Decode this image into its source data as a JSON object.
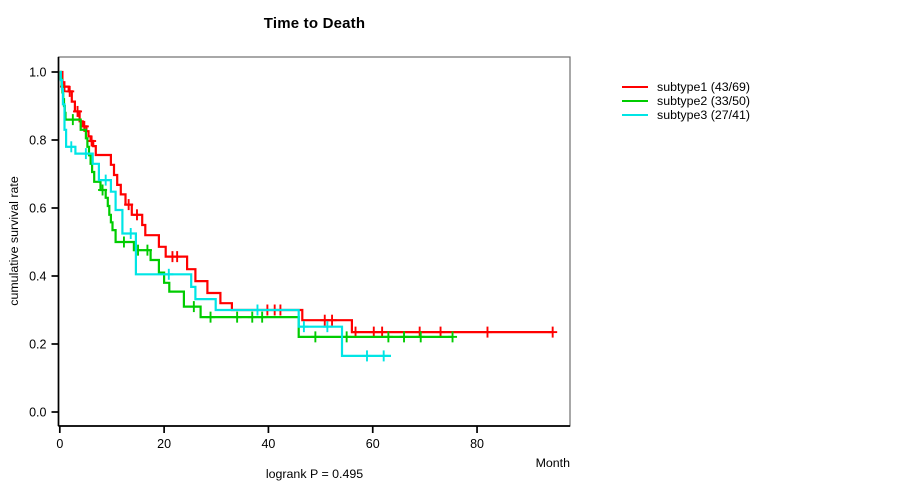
{
  "title": "Time to Death",
  "y_axis": {
    "label": "cumulative survival rate"
  },
  "x_axis": {
    "label": "Month"
  },
  "footer": "logrank P = 0.495",
  "legend": {
    "items": [
      {
        "label": "subtype1 (43/69)",
        "color": "#ff0000"
      },
      {
        "label": "subtype2 (33/50)",
        "color": "#00cc00"
      },
      {
        "label": "subtype3 (27/41)",
        "color": "#00e5e5"
      }
    ]
  },
  "chart_data": {
    "type": "line",
    "variant": "kaplan-meier-step",
    "title": "Time to Death",
    "xlabel": "Month",
    "ylabel": "cumulative survival rate",
    "annotation": "logrank P = 0.495",
    "xlim": [
      0,
      97.5
    ],
    "ylim": [
      0,
      1
    ],
    "x_ticks": [
      0,
      20,
      40,
      60,
      80
    ],
    "y_ticks": [
      0.0,
      0.2,
      0.4,
      0.6,
      0.8,
      1.0
    ],
    "grid": false,
    "legend_position": "right-outside",
    "series": [
      {
        "name": "subtype1",
        "events": 43,
        "n": 69,
        "color": "#ff0000",
        "end_time": 94.5,
        "steps": [
          [
            0,
            1.0
          ],
          [
            0.5,
            0.957
          ],
          [
            1.7,
            0.943
          ],
          [
            2.3,
            0.913
          ],
          [
            2.9,
            0.884
          ],
          [
            3.8,
            0.855
          ],
          [
            4.4,
            0.84
          ],
          [
            5.1,
            0.826
          ],
          [
            5.5,
            0.811
          ],
          [
            5.9,
            0.797
          ],
          [
            6.4,
            0.782
          ],
          [
            6.9,
            0.756
          ],
          [
            9.8,
            0.727
          ],
          [
            10.4,
            0.697
          ],
          [
            11.0,
            0.668
          ],
          [
            11.7,
            0.64
          ],
          [
            12.6,
            0.61
          ],
          [
            13.8,
            0.58
          ],
          [
            15.8,
            0.55
          ],
          [
            16.4,
            0.52
          ],
          [
            19.0,
            0.486
          ],
          [
            20.3,
            0.457
          ],
          [
            24.4,
            0.42
          ],
          [
            26.0,
            0.385
          ],
          [
            28.3,
            0.35
          ],
          [
            30.8,
            0.32
          ],
          [
            33.0,
            0.3
          ],
          [
            46.5,
            0.27
          ],
          [
            56.0,
            0.235
          ]
        ],
        "censors": [
          [
            0.9,
            0.957
          ],
          [
            1.9,
            0.943
          ],
          [
            3.4,
            0.884
          ],
          [
            4.7,
            0.84
          ],
          [
            6.1,
            0.797
          ],
          [
            13.2,
            0.61
          ],
          [
            14.8,
            0.58
          ],
          [
            21.6,
            0.457
          ],
          [
            22.5,
            0.457
          ],
          [
            39.8,
            0.3
          ],
          [
            41.2,
            0.3
          ],
          [
            42.3,
            0.3
          ],
          [
            50.8,
            0.27
          ],
          [
            52.2,
            0.27
          ],
          [
            56.7,
            0.235
          ],
          [
            60.2,
            0.235
          ],
          [
            61.8,
            0.235
          ],
          [
            69.0,
            0.235
          ],
          [
            73.0,
            0.235
          ],
          [
            82.0,
            0.235
          ],
          [
            94.5,
            0.235
          ]
        ]
      },
      {
        "name": "subtype2",
        "events": 33,
        "n": 50,
        "color": "#00cc00",
        "end_time": 75.3,
        "steps": [
          [
            0,
            1.0
          ],
          [
            0.2,
            0.98
          ],
          [
            0.35,
            0.96
          ],
          [
            0.5,
            0.94
          ],
          [
            0.65,
            0.92
          ],
          [
            0.8,
            0.9
          ],
          [
            0.95,
            0.88
          ],
          [
            1.1,
            0.86
          ],
          [
            4.0,
            0.83
          ],
          [
            5.0,
            0.805
          ],
          [
            5.3,
            0.78
          ],
          [
            5.6,
            0.755
          ],
          [
            5.9,
            0.73
          ],
          [
            6.2,
            0.706
          ],
          [
            6.6,
            0.677
          ],
          [
            7.8,
            0.653
          ],
          [
            8.8,
            0.63
          ],
          [
            9.2,
            0.606
          ],
          [
            9.5,
            0.58
          ],
          [
            9.8,
            0.558
          ],
          [
            10.1,
            0.535
          ],
          [
            10.7,
            0.5
          ],
          [
            14.2,
            0.476
          ],
          [
            17.4,
            0.447
          ],
          [
            19.0,
            0.41
          ],
          [
            20.0,
            0.38
          ],
          [
            21.0,
            0.354
          ],
          [
            23.8,
            0.31
          ],
          [
            27.0,
            0.279
          ],
          [
            45.8,
            0.221
          ]
        ],
        "censors": [
          [
            2.5,
            0.86
          ],
          [
            8.2,
            0.653
          ],
          [
            12.3,
            0.5
          ],
          [
            15.0,
            0.476
          ],
          [
            16.8,
            0.476
          ],
          [
            25.7,
            0.31
          ],
          [
            28.9,
            0.279
          ],
          [
            34.0,
            0.279
          ],
          [
            36.9,
            0.279
          ],
          [
            38.8,
            0.279
          ],
          [
            49.0,
            0.221
          ],
          [
            55.0,
            0.221
          ],
          [
            63.0,
            0.221
          ],
          [
            66.0,
            0.221
          ],
          [
            69.2,
            0.221
          ],
          [
            75.3,
            0.221
          ]
        ]
      },
      {
        "name": "subtype3",
        "events": 27,
        "n": 41,
        "color": "#00e5e5",
        "end_time": 63.5,
        "steps": [
          [
            0,
            1.0
          ],
          [
            0.2,
            0.976
          ],
          [
            0.4,
            0.95
          ],
          [
            0.6,
            0.905
          ],
          [
            0.9,
            0.83
          ],
          [
            1.2,
            0.78
          ],
          [
            3.0,
            0.76
          ],
          [
            6.3,
            0.73
          ],
          [
            7.5,
            0.682
          ],
          [
            9.8,
            0.648
          ],
          [
            10.7,
            0.594
          ],
          [
            12.0,
            0.525
          ],
          [
            14.6,
            0.405
          ],
          [
            25.2,
            0.368
          ],
          [
            26.0,
            0.332
          ],
          [
            29.9,
            0.3
          ],
          [
            45.8,
            0.251
          ],
          [
            54.1,
            0.165
          ]
        ],
        "censors": [
          [
            2.2,
            0.78
          ],
          [
            5.0,
            0.76
          ],
          [
            8.8,
            0.682
          ],
          [
            13.6,
            0.525
          ],
          [
            20.9,
            0.405
          ],
          [
            37.9,
            0.3
          ],
          [
            46.8,
            0.251
          ],
          [
            51.3,
            0.251
          ],
          [
            58.9,
            0.165
          ],
          [
            62.1,
            0.165
          ]
        ]
      }
    ]
  },
  "layout_colors": {
    "box_border": "#6f6f6f",
    "axis": "#000000",
    "text": "#000000"
  }
}
